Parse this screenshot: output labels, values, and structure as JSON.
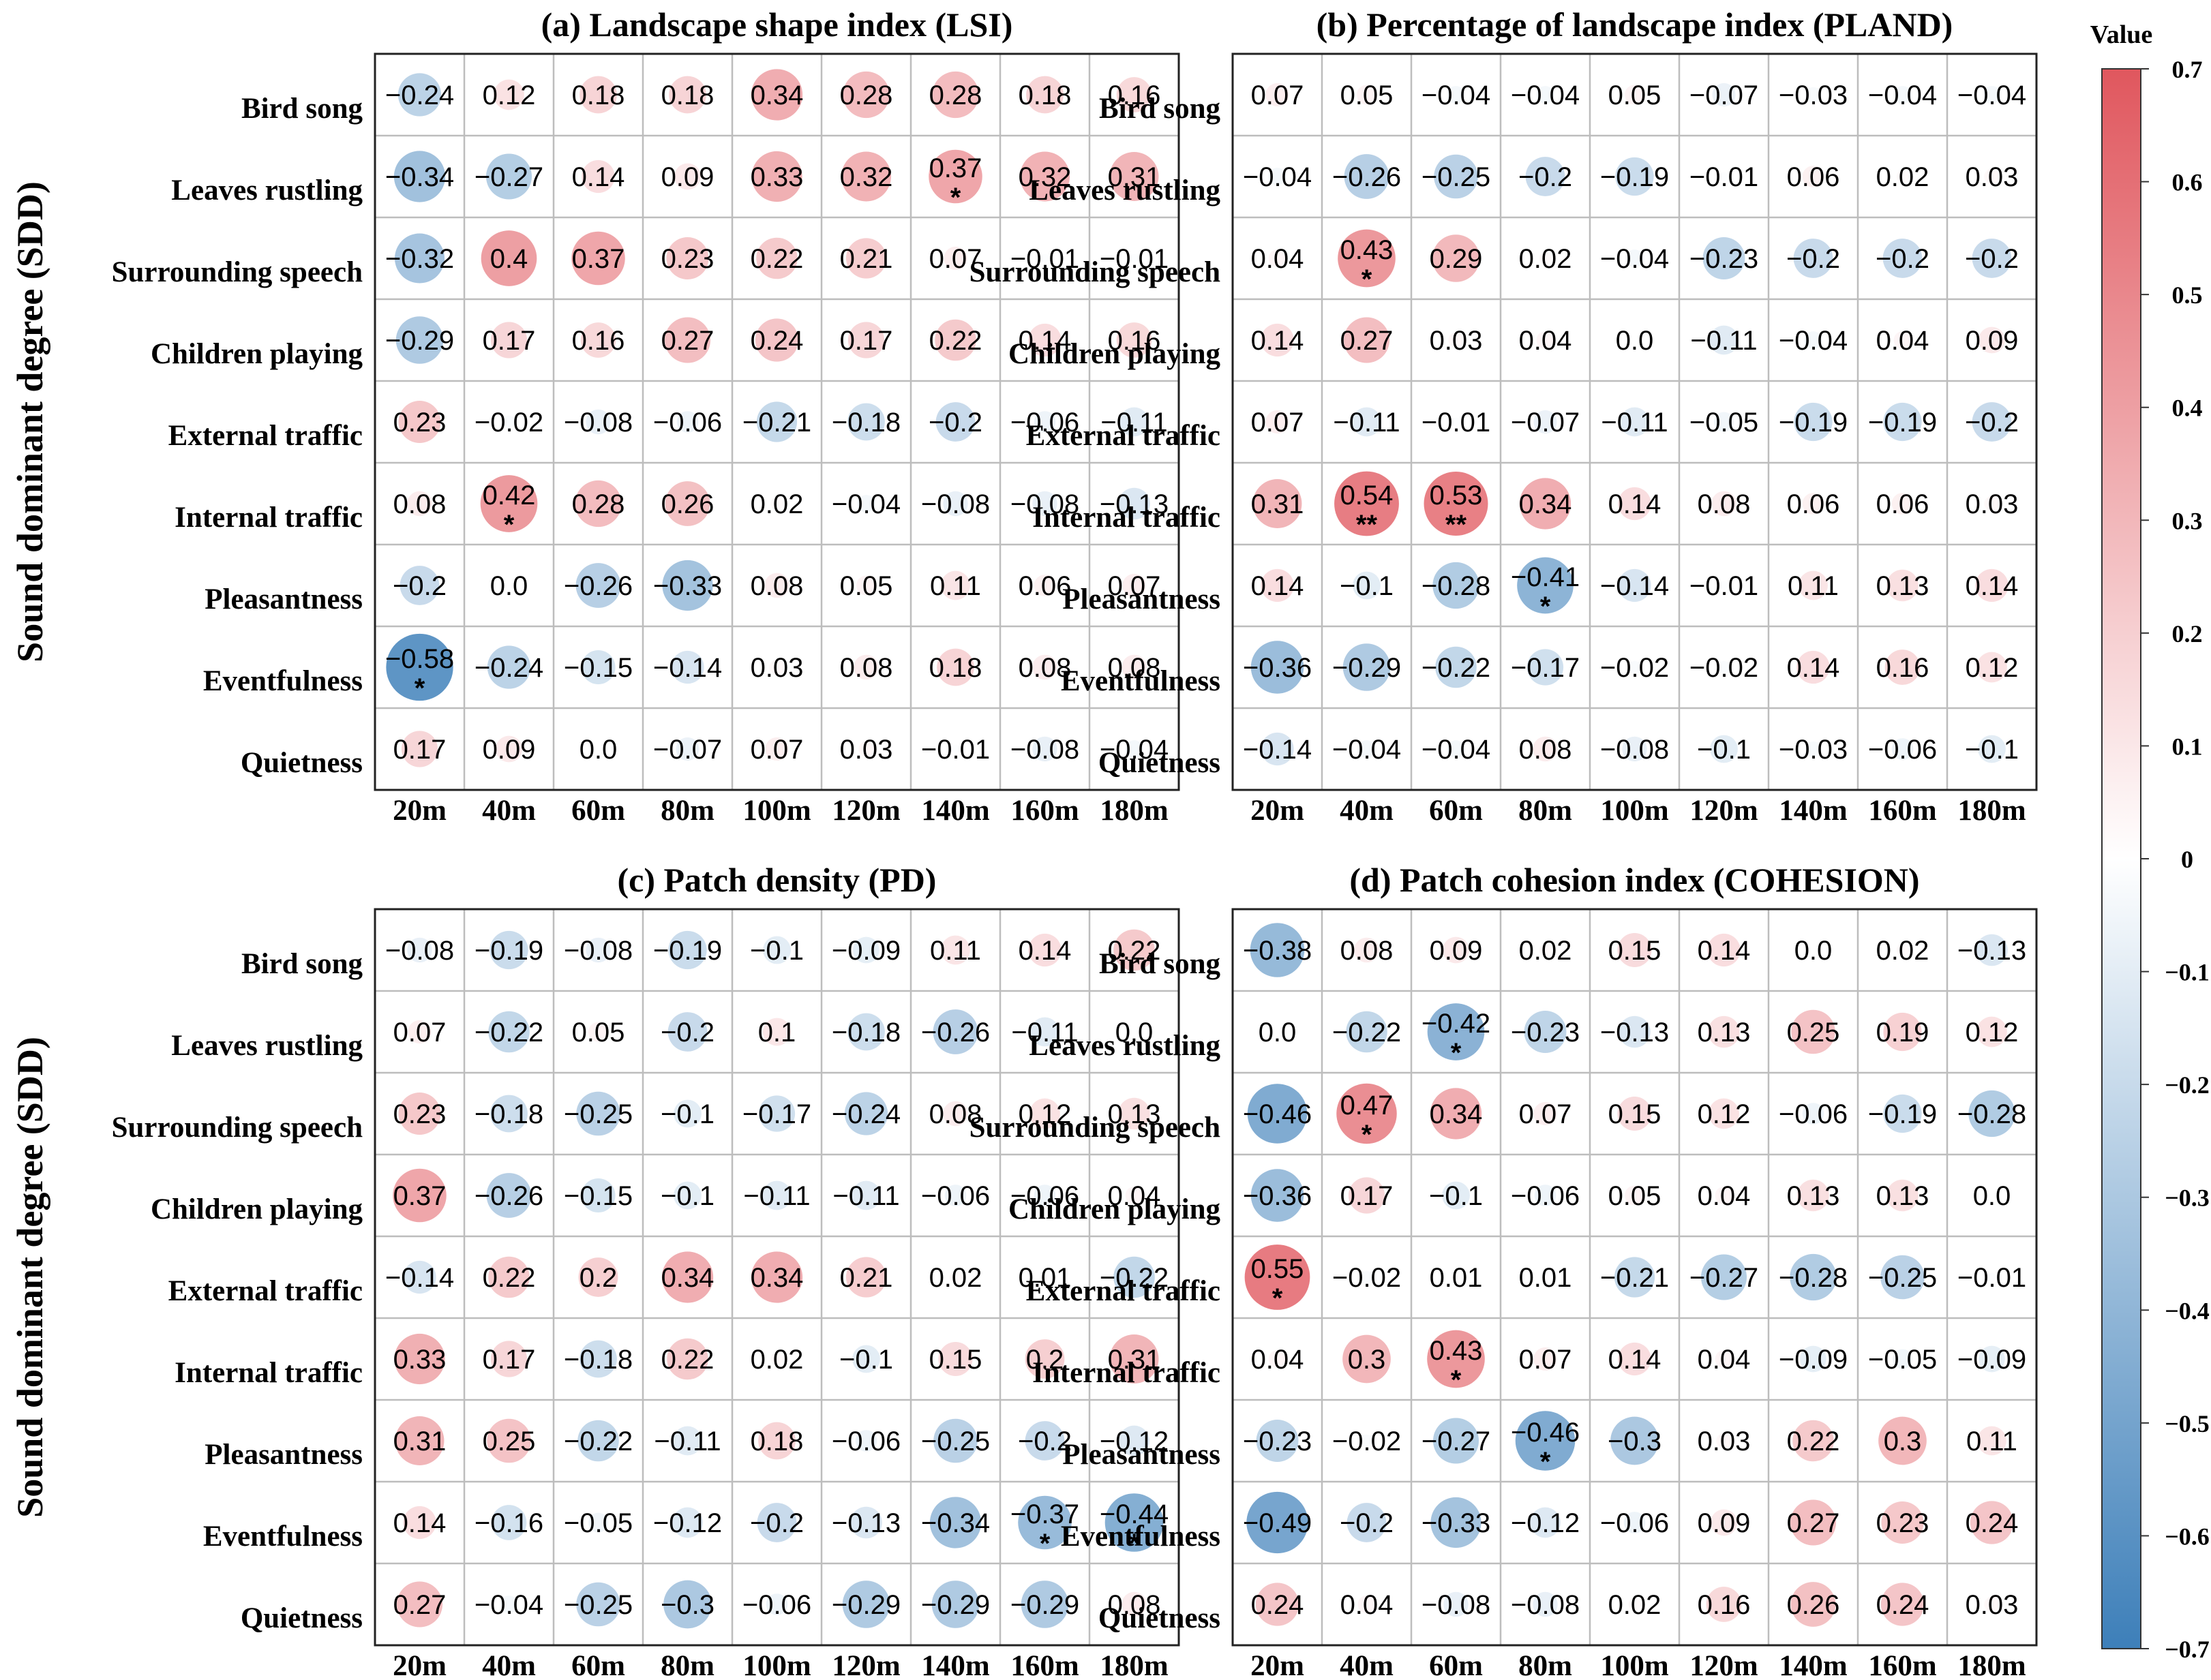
{
  "chart_data": {
    "type": "heatmap",
    "style": "correlation bubble matrix",
    "y_axis_label": "Sound dominant degree  (SDD)",
    "rows": [
      "Bird  song",
      "Leaves rustling",
      "Surrounding speech",
      "Children playing",
      "External traffic",
      "Internal traffic",
      "Pleasantness",
      "Eventfulness",
      "Quietness"
    ],
    "columns": [
      "20m",
      "40m",
      "60m",
      "80m",
      "100m",
      "120m",
      "140m",
      "160m",
      "180m"
    ],
    "colorbar": {
      "title": "Value",
      "min": -0.7,
      "max": 0.7,
      "ticks": [
        "0.7",
        "0.6",
        "0.5",
        "0.4",
        "0.3",
        "0.2",
        "0.1",
        "0",
        "−0.1",
        "−0.2",
        "−0.3",
        "−0.4",
        "−0.5",
        "−0.6",
        "−0.7"
      ],
      "negative_color": "#3d7fb9",
      "neutral_color": "#ffffff",
      "positive_color": "#e0575e"
    },
    "panels": [
      {
        "title": "(a) Landscape shape index (LSI)",
        "values": [
          [
            -0.24,
            0.12,
            0.18,
            0.18,
            0.34,
            0.28,
            0.28,
            0.18,
            0.16
          ],
          [
            -0.34,
            -0.27,
            0.14,
            0.09,
            0.33,
            0.32,
            0.37,
            0.32,
            0.31
          ],
          [
            -0.32,
            0.4,
            0.37,
            0.23,
            0.22,
            0.21,
            0.07,
            -0.01,
            -0.01
          ],
          [
            -0.29,
            0.17,
            0.16,
            0.27,
            0.24,
            0.17,
            0.22,
            0.14,
            0.16
          ],
          [
            0.23,
            -0.02,
            -0.08,
            -0.06,
            -0.21,
            -0.18,
            -0.2,
            -0.06,
            -0.11
          ],
          [
            0.08,
            0.42,
            0.28,
            0.26,
            0.02,
            -0.04,
            -0.08,
            -0.08,
            -0.13
          ],
          [
            -0.2,
            0.0,
            -0.26,
            -0.33,
            0.08,
            0.05,
            0.11,
            0.06,
            0.07
          ],
          [
            -0.58,
            -0.24,
            -0.15,
            -0.14,
            0.03,
            0.08,
            0.18,
            0.08,
            0.08
          ],
          [
            0.17,
            0.09,
            0.0,
            -0.07,
            0.07,
            0.03,
            -0.01,
            -0.08,
            -0.04
          ]
        ],
        "significance": [
          [
            "",
            "",
            "",
            "",
            "",
            "",
            "",
            "",
            ""
          ],
          [
            "",
            "",
            "",
            "",
            "",
            "",
            "*",
            "",
            ""
          ],
          [
            "",
            "",
            "",
            "",
            "",
            "",
            "",
            "",
            ""
          ],
          [
            "",
            "",
            "",
            "",
            "",
            "",
            "",
            "",
            ""
          ],
          [
            "",
            "",
            "",
            "",
            "",
            "",
            "",
            "",
            ""
          ],
          [
            "",
            "*",
            "",
            "",
            "",
            "",
            "",
            "",
            ""
          ],
          [
            "",
            "",
            "",
            "",
            "",
            "",
            "",
            "",
            ""
          ],
          [
            "*",
            "",
            "",
            "",
            "",
            "",
            "",
            "",
            ""
          ],
          [
            "",
            "",
            "",
            "",
            "",
            "",
            "",
            "",
            ""
          ]
        ]
      },
      {
        "title": "(b) Percentage of landscape index (PLAND)",
        "values": [
          [
            0.07,
            0.05,
            -0.04,
            -0.04,
            0.05,
            -0.07,
            -0.03,
            -0.04,
            -0.04
          ],
          [
            -0.04,
            -0.26,
            -0.25,
            -0.2,
            -0.19,
            -0.01,
            0.06,
            0.02,
            0.03
          ],
          [
            0.04,
            0.43,
            0.29,
            0.02,
            -0.04,
            -0.23,
            -0.2,
            -0.2,
            -0.2
          ],
          [
            0.14,
            0.27,
            0.03,
            0.04,
            0.0,
            -0.11,
            -0.04,
            0.04,
            0.09
          ],
          [
            0.07,
            -0.11,
            -0.01,
            -0.07,
            -0.11,
            -0.05,
            -0.19,
            -0.19,
            -0.2
          ],
          [
            0.31,
            0.54,
            0.53,
            0.34,
            0.14,
            0.08,
            0.06,
            0.06,
            0.03
          ],
          [
            0.14,
            -0.1,
            -0.28,
            -0.41,
            -0.14,
            -0.01,
            0.11,
            0.13,
            0.14
          ],
          [
            -0.36,
            -0.29,
            -0.22,
            -0.17,
            -0.02,
            -0.02,
            0.14,
            0.16,
            0.12
          ],
          [
            -0.14,
            -0.04,
            -0.04,
            0.08,
            -0.08,
            -0.1,
            -0.03,
            -0.06,
            -0.1
          ]
        ],
        "significance": [
          [
            "",
            "",
            "",
            "",
            "",
            "",
            "",
            "",
            ""
          ],
          [
            "",
            "",
            "",
            "",
            "",
            "",
            "",
            "",
            ""
          ],
          [
            "",
            "*",
            "",
            "",
            "",
            "",
            "",
            "",
            ""
          ],
          [
            "",
            "",
            "",
            "",
            "",
            "",
            "",
            "",
            ""
          ],
          [
            "",
            "",
            "",
            "",
            "",
            "",
            "",
            "",
            ""
          ],
          [
            "",
            "**",
            "**",
            "",
            "",
            "",
            "",
            "",
            ""
          ],
          [
            "",
            "",
            "",
            "*",
            "",
            "",
            "",
            "",
            ""
          ],
          [
            "",
            "",
            "",
            "",
            "",
            "",
            "",
            "",
            ""
          ],
          [
            "",
            "",
            "",
            "",
            "",
            "",
            "",
            "",
            ""
          ]
        ]
      },
      {
        "title": "(c) Patch density (PD)",
        "values": [
          [
            -0.08,
            -0.19,
            -0.08,
            -0.19,
            -0.1,
            -0.09,
            0.11,
            0.14,
            0.22
          ],
          [
            0.07,
            -0.22,
            0.05,
            -0.2,
            0.1,
            -0.18,
            -0.26,
            -0.11,
            0.0
          ],
          [
            0.23,
            -0.18,
            -0.25,
            -0.1,
            -0.17,
            -0.24,
            0.08,
            0.12,
            0.13
          ],
          [
            0.37,
            -0.26,
            -0.15,
            -0.1,
            -0.11,
            -0.11,
            -0.06,
            -0.06,
            0.04
          ],
          [
            -0.14,
            0.22,
            0.2,
            0.34,
            0.34,
            0.21,
            0.02,
            0.01,
            -0.22
          ],
          [
            0.33,
            0.17,
            -0.18,
            0.22,
            0.02,
            -0.1,
            0.15,
            0.2,
            0.31
          ],
          [
            0.31,
            0.25,
            -0.22,
            -0.11,
            0.18,
            -0.06,
            -0.25,
            -0.2,
            -0.12
          ],
          [
            0.14,
            -0.16,
            -0.05,
            -0.12,
            -0.2,
            -0.13,
            -0.34,
            -0.37,
            -0.44
          ],
          [
            0.27,
            -0.04,
            -0.25,
            -0.3,
            -0.06,
            -0.29,
            -0.29,
            -0.29,
            0.08
          ]
        ],
        "significance": [
          [
            "",
            "",
            "",
            "",
            "",
            "",
            "",
            "",
            ""
          ],
          [
            "",
            "",
            "",
            "",
            "",
            "",
            "",
            "",
            ""
          ],
          [
            "",
            "",
            "",
            "",
            "",
            "",
            "",
            "",
            ""
          ],
          [
            "",
            "",
            "",
            "",
            "",
            "",
            "",
            "",
            ""
          ],
          [
            "",
            "",
            "",
            "",
            "",
            "",
            "",
            "",
            ""
          ],
          [
            "",
            "",
            "",
            "",
            "",
            "",
            "",
            "",
            ""
          ],
          [
            "",
            "",
            "",
            "",
            "",
            "",
            "",
            "",
            ""
          ],
          [
            "",
            "",
            "",
            "",
            "",
            "",
            "",
            "*",
            "*"
          ],
          [
            "",
            "",
            "",
            "",
            "",
            "",
            "",
            "",
            ""
          ]
        ]
      },
      {
        "title": "(d) Patch cohesion index (COHESION)",
        "values": [
          [
            -0.38,
            0.08,
            0.09,
            0.02,
            0.15,
            0.14,
            0.0,
            0.02,
            -0.13
          ],
          [
            0.0,
            -0.22,
            -0.42,
            -0.23,
            -0.13,
            0.13,
            0.25,
            0.19,
            0.12
          ],
          [
            -0.46,
            0.47,
            0.34,
            0.07,
            0.15,
            0.12,
            -0.06,
            -0.19,
            -0.28
          ],
          [
            -0.36,
            0.17,
            -0.1,
            -0.06,
            0.05,
            0.04,
            0.13,
            0.13,
            0.0
          ],
          [
            0.55,
            -0.02,
            0.01,
            0.01,
            -0.21,
            -0.27,
            -0.28,
            -0.25,
            -0.01
          ],
          [
            0.04,
            0.3,
            0.43,
            0.07,
            0.14,
            0.04,
            -0.09,
            -0.05,
            -0.09
          ],
          [
            -0.23,
            -0.02,
            -0.27,
            -0.46,
            -0.3,
            0.03,
            0.22,
            0.3,
            0.11
          ],
          [
            -0.49,
            -0.2,
            -0.33,
            -0.12,
            -0.06,
            0.09,
            0.27,
            0.23,
            0.24
          ],
          [
            0.24,
            0.04,
            -0.08,
            -0.08,
            0.02,
            0.16,
            0.26,
            0.24,
            0.03
          ]
        ],
        "significance": [
          [
            "",
            "",
            "",
            "",
            "",
            "",
            "",
            "",
            ""
          ],
          [
            "",
            "",
            "*",
            "",
            "",
            "",
            "",
            "",
            ""
          ],
          [
            "",
            "*",
            "",
            "",
            "",
            "",
            "",
            "",
            ""
          ],
          [
            "",
            "",
            "",
            "",
            "",
            "",
            "",
            "",
            ""
          ],
          [
            "*",
            "",
            "",
            "",
            "",
            "",
            "",
            "",
            ""
          ],
          [
            "",
            "",
            "*",
            "",
            "",
            "",
            "",
            "",
            ""
          ],
          [
            "",
            "",
            "",
            "*",
            "",
            "",
            "",
            "",
            ""
          ],
          [
            "",
            "",
            "",
            "",
            "",
            "",
            "",
            "",
            ""
          ],
          [
            "",
            "",
            "",
            "",
            "",
            "",
            "",
            "",
            ""
          ]
        ]
      }
    ]
  }
}
